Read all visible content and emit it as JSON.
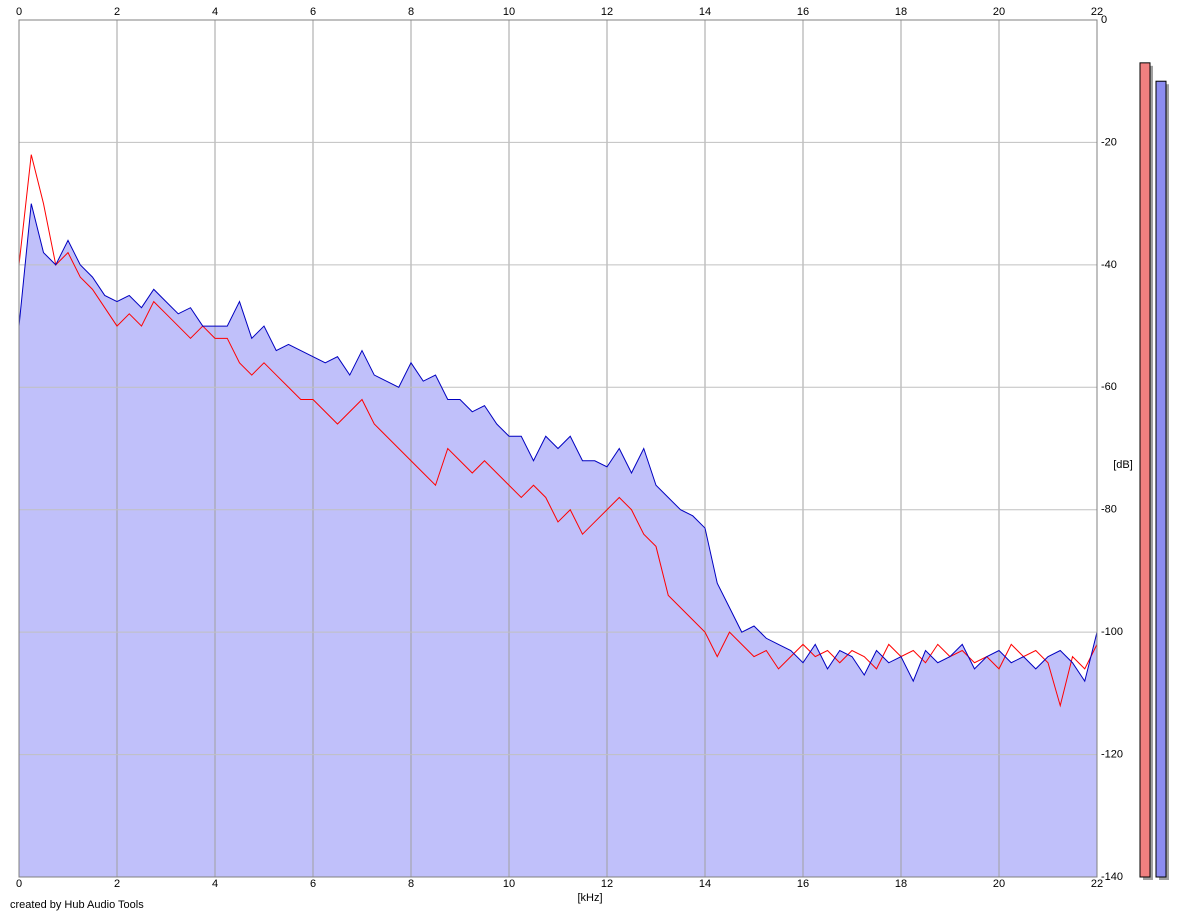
{
  "chart_data": {
    "type": "line",
    "x_label": "[kHz]",
    "y_label": "[dB]",
    "credit": "created by Hub Audio Tools",
    "xlim": [
      0,
      22
    ],
    "xticks": [
      0,
      2,
      4,
      6,
      8,
      10,
      12,
      14,
      16,
      18,
      20,
      22
    ],
    "ylim": [
      -140,
      0
    ],
    "yticks": [
      0,
      -20,
      -40,
      -60,
      -80,
      -100,
      -120,
      -140
    ],
    "grid": true,
    "fill_color": "#c0c0fa",
    "x": [
      0,
      0.25,
      0.5,
      0.75,
      1,
      1.25,
      1.5,
      1.75,
      2,
      2.25,
      2.5,
      2.75,
      3,
      3.25,
      3.5,
      3.75,
      4,
      4.25,
      4.5,
      4.75,
      5,
      5.25,
      5.5,
      5.75,
      6,
      6.25,
      6.5,
      6.75,
      7,
      7.25,
      7.5,
      7.75,
      8,
      8.25,
      8.5,
      8.75,
      9,
      9.25,
      9.5,
      9.75,
      10,
      10.25,
      10.5,
      10.75,
      11,
      11.25,
      11.5,
      11.75,
      12,
      12.25,
      12.5,
      12.75,
      13,
      13.25,
      13.5,
      13.75,
      14,
      14.25,
      14.5,
      14.75,
      15,
      15.25,
      15.5,
      15.75,
      16,
      16.25,
      16.5,
      16.75,
      17,
      17.25,
      17.5,
      17.75,
      18,
      18.25,
      18.5,
      18.75,
      19,
      19.25,
      19.5,
      19.75,
      20,
      20.25,
      20.5,
      20.75,
      21,
      21.25,
      21.5,
      21.75,
      22
    ],
    "series": [
      {
        "color": "#0000c0",
        "meter_color": "#8c8cf0",
        "level": -10,
        "values": [
          -50,
          -30,
          -38,
          -40,
          -36,
          -40,
          -42,
          -45,
          -46,
          -45,
          -47,
          -44,
          -46,
          -48,
          -47,
          -50,
          -50,
          -50,
          -46,
          -52,
          -50,
          -54,
          -53,
          -54,
          -55,
          -56,
          -55,
          -58,
          -54,
          -58,
          -59,
          -60,
          -56,
          -59,
          -58,
          -62,
          -62,
          -64,
          -63,
          -66,
          -68,
          -68,
          -72,
          -68,
          -70,
          -68,
          -72,
          -72,
          -73,
          -70,
          -74,
          -70,
          -76,
          -78,
          -80,
          -81,
          -83,
          -92,
          -96,
          -100,
          -99,
          -101,
          -102,
          -103,
          -105,
          -102,
          -106,
          -103,
          -104,
          -107,
          -103,
          -105,
          -104,
          -108,
          -103,
          -105,
          -104,
          -102,
          -106,
          -104,
          -103,
          -105,
          -104,
          -106,
          -104,
          -103,
          -105,
          -108,
          -100
        ]
      },
      {
        "color": "#ff0000",
        "meter_color": "#f08080",
        "level": -7,
        "values": [
          -40,
          -22,
          -30,
          -40,
          -38,
          -42,
          -44,
          -47,
          -50,
          -48,
          -50,
          -46,
          -48,
          -50,
          -52,
          -50,
          -52,
          -52,
          -56,
          -58,
          -56,
          -58,
          -60,
          -62,
          -62,
          -64,
          -66,
          -64,
          -62,
          -66,
          -68,
          -70,
          -72,
          -74,
          -76,
          -70,
          -72,
          -74,
          -72,
          -74,
          -76,
          -78,
          -76,
          -78,
          -82,
          -80,
          -84,
          -82,
          -80,
          -78,
          -80,
          -84,
          -86,
          -94,
          -96,
          -98,
          -100,
          -104,
          -100,
          -102,
          -104,
          -103,
          -106,
          -104,
          -102,
          -104,
          -103,
          -105,
          -103,
          -104,
          -106,
          -102,
          -104,
          -103,
          -105,
          -102,
          -104,
          -103,
          -105,
          -104,
          -106,
          -102,
          -104,
          -103,
          -105,
          -112,
          -104,
          -106,
          -102
        ]
      }
    ]
  }
}
